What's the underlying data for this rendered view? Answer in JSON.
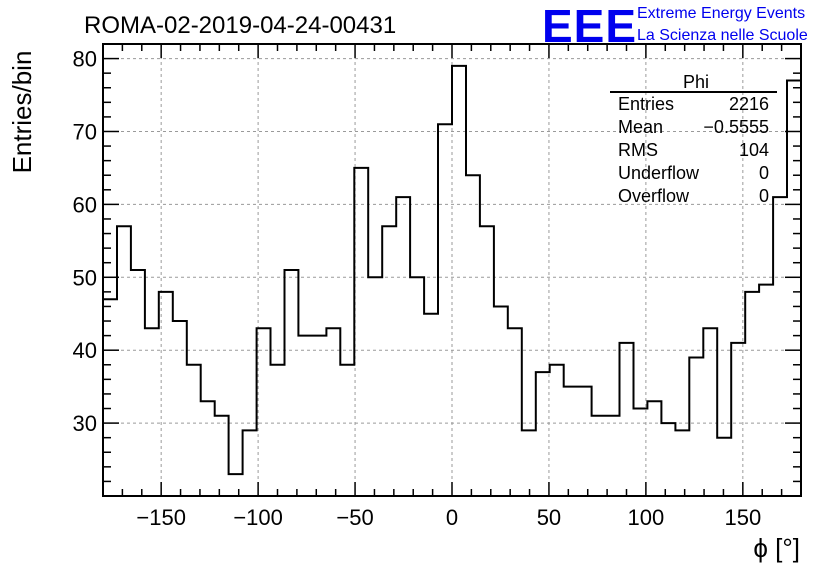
{
  "chart_data": {
    "type": "histogram",
    "title": "ROMA-02-2019-04-24-00431",
    "xlabel": "ϕ [°]",
    "ylabel": "Entries/bin",
    "xlim": [
      -180,
      180
    ],
    "ylim": [
      20,
      82
    ],
    "grid": true,
    "bin_edges_start": -180,
    "bin_width": 7.2,
    "values": [
      47,
      57,
      51,
      43,
      48,
      44,
      38,
      33,
      31,
      23,
      29,
      43,
      38,
      51,
      42,
      42,
      43,
      38,
      65,
      50,
      57,
      61,
      50,
      45,
      71,
      79,
      64,
      57,
      46,
      43,
      29,
      37,
      38,
      35,
      35,
      31,
      31,
      41,
      32,
      33,
      30,
      29,
      39,
      43,
      28,
      41,
      48,
      49,
      61,
      77
    ],
    "xticks": [
      -150,
      -100,
      -50,
      0,
      50,
      100,
      150
    ],
    "xtick_labels": [
      "−150",
      "−100",
      "−50",
      "0",
      "50",
      "100",
      "150"
    ],
    "yticks": [
      30,
      40,
      50,
      60,
      70,
      80
    ],
    "ytick_labels": [
      "30",
      "40",
      "50",
      "60",
      "70",
      "80"
    ],
    "stats_box": {
      "title": "Phi",
      "placement": "top-right",
      "rows": [
        {
          "label": "Entries",
          "value": "2216"
        },
        {
          "label": "Mean",
          "value": "−0.5555"
        },
        {
          "label": "RMS",
          "value": "104"
        },
        {
          "label": "Underflow",
          "value": "0"
        },
        {
          "label": "Overflow",
          "value": "0"
        }
      ]
    }
  },
  "logo": {
    "mark": "EEE",
    "line1": "Extreme Energy Events",
    "line2": "La Scienza nelle Scuole",
    "color": "#0000ee"
  }
}
